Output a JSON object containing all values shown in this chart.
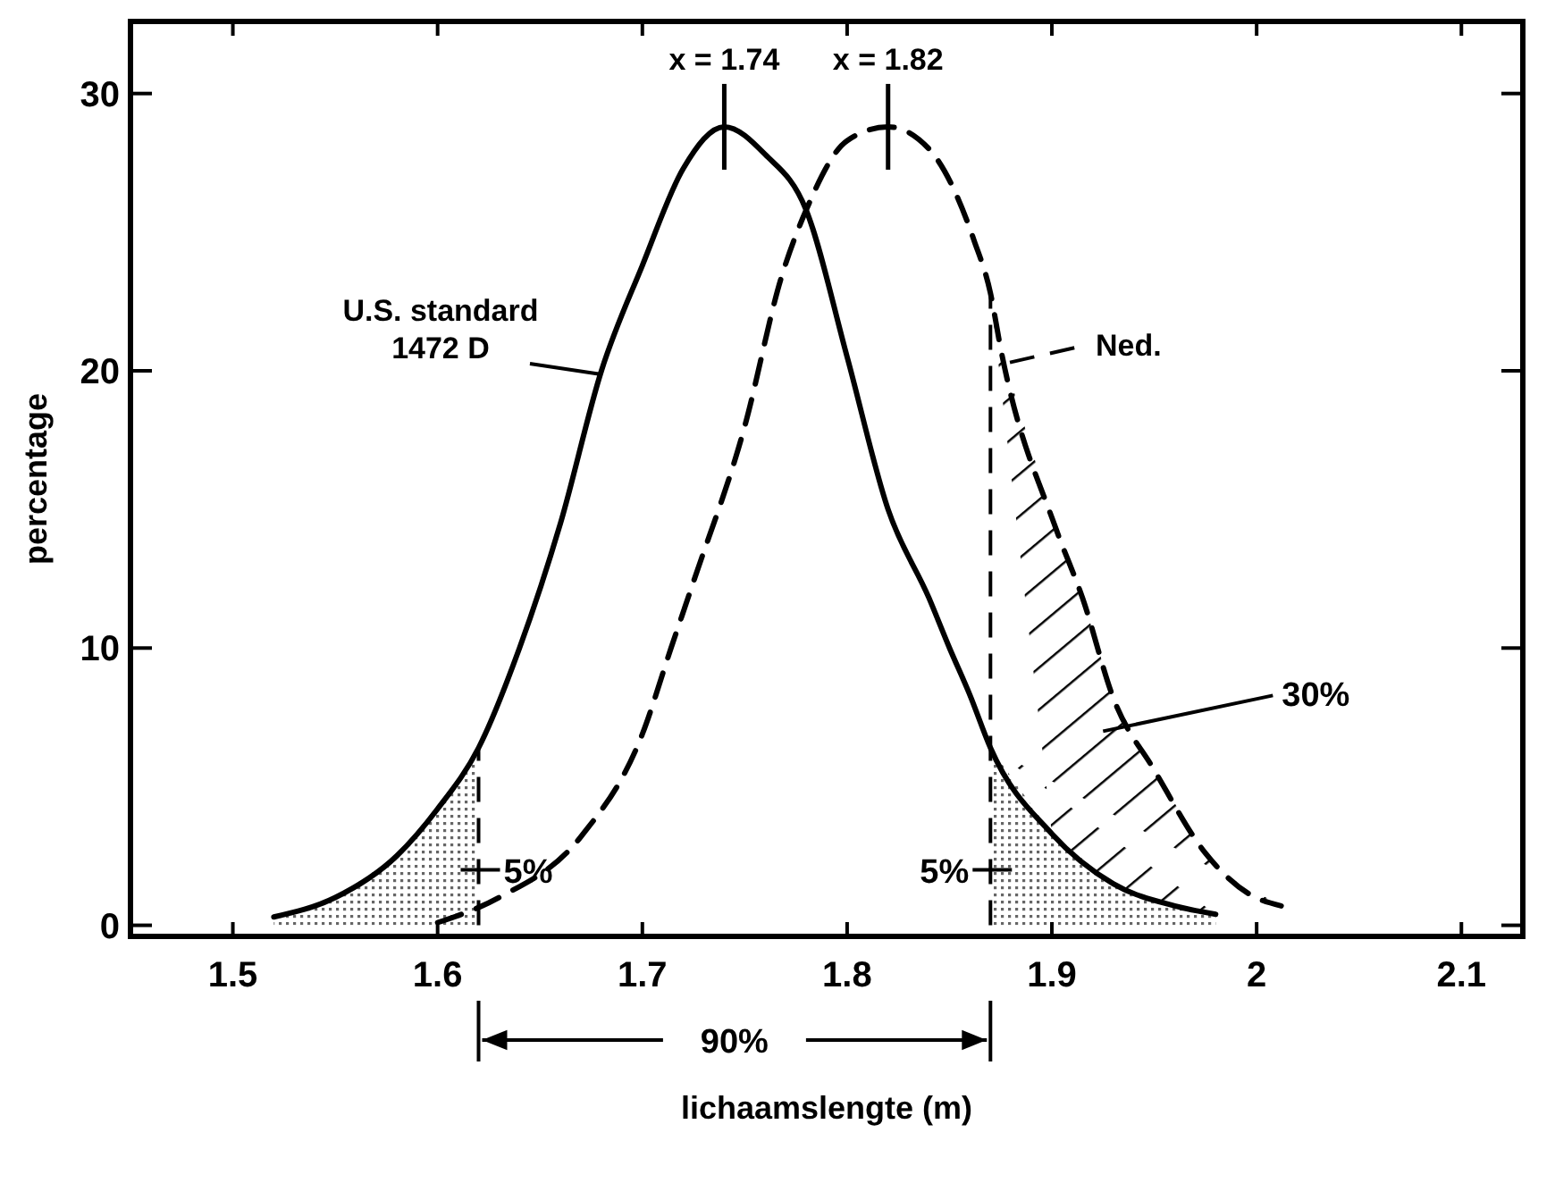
{
  "chart_data": {
    "type": "line",
    "xlabel": "lichaamslengte (m)",
    "ylabel": "percentage",
    "xlim": [
      1.45,
      2.13
    ],
    "xticks": [
      1.5,
      1.6,
      1.7,
      1.8,
      1.9,
      2.0,
      2.1
    ],
    "ylim": [
      -0.4,
      32.6
    ],
    "yticks": [
      0,
      10,
      20,
      30
    ],
    "grid": false,
    "series": [
      {
        "name": "U.S. standard\n1472 D",
        "color": "#000000",
        "line_style": "solid",
        "x": [
          1.52,
          1.55,
          1.58,
          1.6,
          1.62,
          1.64,
          1.66,
          1.68,
          1.7,
          1.72,
          1.74,
          1.76,
          1.78,
          1.8,
          1.82,
          1.84,
          1.85,
          1.86,
          1.87,
          1.9,
          1.93,
          1.96,
          1.98
        ],
        "values": [
          0.3,
          1.0,
          2.5,
          4.2,
          6.4,
          10,
          14.5,
          20,
          23.8,
          27.3,
          28.8,
          27.8,
          25.8,
          20.5,
          15,
          11.8,
          10,
          8.3,
          6.4,
          3.3,
          1.5,
          0.7,
          0.4
        ]
      },
      {
        "name": "Ned.",
        "color": "#000000",
        "line_style": "dashed",
        "x": [
          1.6,
          1.63,
          1.67,
          1.7,
          1.714,
          1.725,
          1.75,
          1.768,
          1.78,
          1.8,
          1.82,
          1.84,
          1.862,
          1.87,
          1.875,
          1.902,
          1.915,
          1.93,
          1.95,
          1.975,
          1.997,
          2.012
        ],
        "values": [
          0.1,
          1.0,
          3.2,
          6.9,
          10,
          12.4,
          18,
          23.4,
          25.8,
          28.3,
          28.8,
          28,
          24.7,
          22.8,
          20.8,
          14.3,
          11.8,
          8.2,
          5.6,
          2.6,
          1.1,
          0.7
        ]
      }
    ],
    "ref_lines": [
      {
        "axis": "x",
        "value": 1.62,
        "line_style": "dashed"
      },
      {
        "axis": "x",
        "value": 1.87,
        "line_style": "dashed"
      }
    ],
    "annotations": [
      {
        "text": "x = 1.74",
        "x": 1.74,
        "y": 28.8
      },
      {
        "text": "x = 1.82",
        "x": 1.82,
        "y": 28.8
      },
      "5%",
      "5%",
      "30%",
      "90%"
    ]
  }
}
